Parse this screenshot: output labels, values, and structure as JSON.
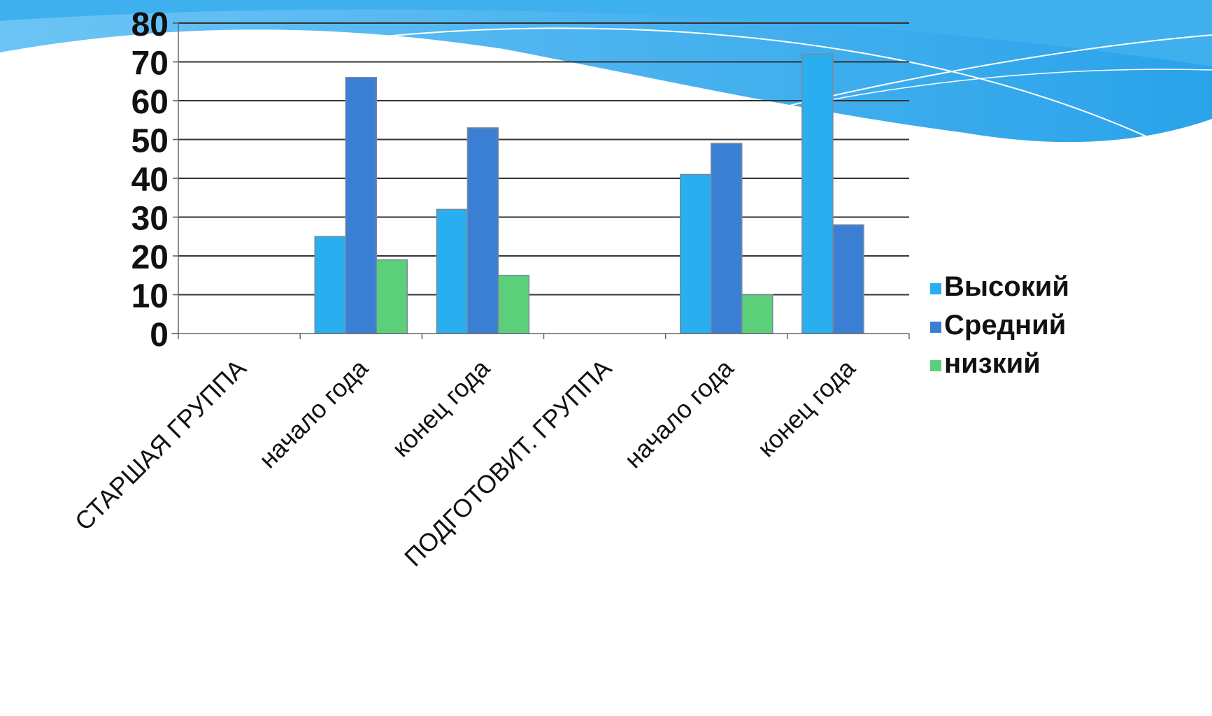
{
  "chart_data": {
    "type": "bar",
    "categories": [
      "СТАРШАЯ ГРУППА",
      "начало года",
      "конец года",
      "ПОДГОТОВИТ. ГРУППА",
      "начало года",
      "конец года"
    ],
    "series": [
      {
        "name": "Высокий",
        "values": [
          null,
          25,
          32,
          null,
          41,
          72
        ],
        "color": "#29aef0"
      },
      {
        "name": "Средний",
        "values": [
          null,
          66,
          53,
          null,
          49,
          28
        ],
        "color": "#3b7fd4"
      },
      {
        "name": "низкий",
        "values": [
          null,
          19,
          15,
          null,
          10,
          null
        ],
        "color": "#5ccf7a"
      }
    ],
    "yticks": [
      "0",
      "10",
      "20",
      "30",
      "40",
      "50",
      "60",
      "70",
      "80"
    ],
    "ylim": [
      0,
      80
    ],
    "grid": true,
    "legend_position": "right",
    "title": "",
    "xlabel": "",
    "ylabel": ""
  }
}
